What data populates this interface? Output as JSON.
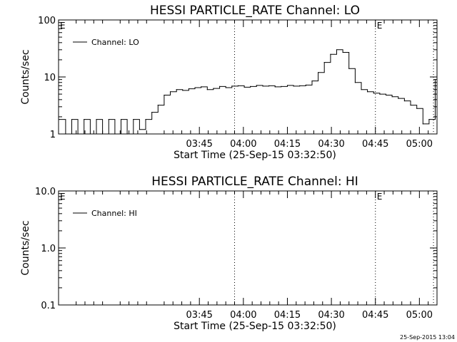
{
  "stamp": "25-Sep-2015 13:04",
  "chart_data": [
    {
      "type": "line",
      "title": "HESSI PARTICLE_RATE Channel: LO",
      "xlabel": "Start Time (25-Sep-15 03:32:50)",
      "ylabel": "Counts/sec",
      "yscale": "log",
      "ylim": [
        1,
        100
      ],
      "yticks": [
        {
          "v": 1,
          "label": "1"
        },
        {
          "v": 10,
          "label": "10"
        },
        {
          "v": 100,
          "label": "100"
        }
      ],
      "xlim": [
        -10.5,
        11
      ],
      "xticks": [
        {
          "v": -2.5,
          "label": "03:45"
        },
        {
          "v": 0,
          "label": "04:00"
        },
        {
          "v": 2.5,
          "label": "04:15"
        },
        {
          "v": 5,
          "label": "04:30"
        },
        {
          "v": 7.5,
          "label": "04:45"
        },
        {
          "v": 10,
          "label": "05:00"
        }
      ],
      "xtick_unit_minutes": 6,
      "xtick_origin": "04:00",
      "markers": [
        {
          "x": -0.5,
          "label": ""
        },
        {
          "x": 7.5,
          "label": "E"
        },
        {
          "x": 10.8,
          "label": ""
        }
      ],
      "corner_label": "E",
      "grid": false,
      "legend": "top-left",
      "series": [
        {
          "name": "Channel: LO",
          "color": "#000000",
          "x": [
            -10.45,
            -10.1,
            -9.75,
            -9.4,
            -9.05,
            -8.7,
            -8.35,
            -8.0,
            -7.65,
            -7.3,
            -6.95,
            -6.6,
            -6.25,
            -5.9,
            -5.55,
            -5.2,
            -4.85,
            -4.5,
            -4.15,
            -3.8,
            -3.45,
            -3.1,
            -2.75,
            -2.4,
            -2.05,
            -1.7,
            -1.35,
            -1.0,
            -0.65,
            -0.3,
            0.05,
            0.4,
            0.75,
            1.1,
            1.45,
            1.8,
            2.15,
            2.5,
            2.85,
            3.2,
            3.55,
            3.9,
            4.25,
            4.6,
            4.95,
            5.3,
            5.65,
            6.0,
            6.35,
            6.7,
            7.05,
            7.4,
            7.75,
            8.1,
            8.45,
            8.8,
            9.15,
            9.5,
            9.85,
            10.2,
            10.55,
            10.9
          ],
          "y": [
            1.8,
            1.0,
            1.8,
            1.0,
            1.8,
            1.0,
            1.8,
            1.0,
            1.8,
            1.0,
            1.8,
            1.0,
            1.8,
            1.2,
            1.8,
            2.4,
            3.2,
            4.8,
            5.5,
            6.0,
            5.8,
            6.2,
            6.5,
            6.7,
            6.0,
            6.3,
            6.8,
            6.5,
            6.9,
            7.0,
            6.6,
            6.8,
            7.1,
            6.9,
            7.0,
            6.7,
            6.8,
            7.1,
            6.9,
            7.0,
            7.2,
            8.5,
            12.0,
            18.0,
            25.0,
            30.0,
            27.0,
            14.0,
            8.0,
            6.0,
            5.5,
            5.2,
            5.0,
            4.8,
            4.5,
            4.2,
            3.8,
            3.2,
            2.8,
            1.5,
            1.8,
            9.0
          ],
          "segments": [
            [
              -10.45,
              1.8
            ],
            [
              -10.1,
              1.0
            ],
            [
              -9.75,
              1.8
            ],
            [
              -9.4,
              1.0
            ],
            [
              -9.05,
              1.8
            ],
            [
              -8.7,
              1.0
            ],
            [
              -8.35,
              1.8
            ],
            [
              -8.0,
              1.0
            ],
            [
              -7.65,
              1.8
            ],
            [
              -7.3,
              1.0
            ],
            [
              -6.95,
              1.8
            ],
            [
              -6.6,
              1.0
            ],
            [
              -6.25,
              1.8
            ],
            [
              -5.9,
              1.2
            ],
            [
              -5.55,
              1.8
            ],
            [
              -5.2,
              2.4
            ],
            [
              -4.85,
              3.2
            ],
            [
              -4.5,
              4.8
            ],
            [
              -4.15,
              5.5
            ],
            [
              -3.8,
              6.0
            ],
            [
              -3.45,
              5.8
            ],
            [
              -3.1,
              6.2
            ],
            [
              -2.75,
              6.5
            ],
            [
              -2.4,
              6.7
            ],
            [
              -2.05,
              6.0
            ],
            [
              -1.7,
              6.3
            ],
            [
              -1.35,
              6.8
            ],
            [
              -1.0,
              6.5
            ],
            [
              -0.65,
              6.9
            ],
            [
              -0.3,
              7.0
            ],
            [
              0.05,
              6.6
            ],
            [
              0.4,
              6.8
            ],
            [
              0.75,
              7.1
            ],
            [
              1.1,
              6.9
            ],
            [
              1.45,
              7.0
            ],
            [
              1.8,
              6.7
            ],
            [
              2.15,
              6.8
            ],
            [
              2.5,
              7.1
            ],
            [
              2.85,
              6.9
            ],
            [
              3.2,
              7.0
            ],
            [
              3.55,
              7.2
            ],
            [
              3.9,
              8.5
            ],
            [
              4.25,
              12.0
            ],
            [
              4.6,
              18.0
            ],
            [
              4.95,
              25.0
            ],
            [
              5.3,
              30.0
            ],
            [
              5.65,
              27.0
            ],
            [
              6.0,
              14.0
            ],
            [
              6.35,
              8.0
            ],
            [
              6.7,
              6.0
            ],
            [
              7.05,
              5.5
            ],
            [
              7.4,
              5.2
            ],
            [
              7.75,
              5.0
            ],
            [
              8.1,
              4.8
            ],
            [
              8.45,
              4.5
            ],
            [
              8.8,
              4.2
            ],
            [
              9.15,
              3.8
            ],
            [
              9.5,
              3.2
            ],
            [
              9.85,
              2.8
            ],
            [
              10.2,
              1.5
            ],
            [
              10.55,
              1.8
            ],
            [
              10.9,
              9.0
            ]
          ]
        }
      ]
    },
    {
      "type": "line",
      "title": "HESSI PARTICLE_RATE Channel: HI",
      "xlabel": "Start Time (25-Sep-15 03:32:50)",
      "ylabel": "Counts/sec",
      "yscale": "log",
      "ylim": [
        0.1,
        10
      ],
      "yticks": [
        {
          "v": 0.1,
          "label": "0.1"
        },
        {
          "v": 1,
          "label": "1.0"
        },
        {
          "v": 10,
          "label": "10.0"
        }
      ],
      "xlim": [
        -10.5,
        11
      ],
      "xticks": [
        {
          "v": -2.5,
          "label": "03:45"
        },
        {
          "v": 0,
          "label": "04:00"
        },
        {
          "v": 2.5,
          "label": "04:15"
        },
        {
          "v": 5,
          "label": "04:30"
        },
        {
          "v": 7.5,
          "label": "04:45"
        },
        {
          "v": 10,
          "label": "05:00"
        }
      ],
      "markers": [
        {
          "x": -0.5,
          "label": ""
        },
        {
          "x": 7.5,
          "label": "E"
        },
        {
          "x": 10.8,
          "label": ""
        }
      ],
      "corner_label": "E",
      "grid": false,
      "legend": "top-left",
      "series": [
        {
          "name": "Channel: HI",
          "color": "#000000",
          "x": [],
          "y": []
        }
      ]
    }
  ]
}
